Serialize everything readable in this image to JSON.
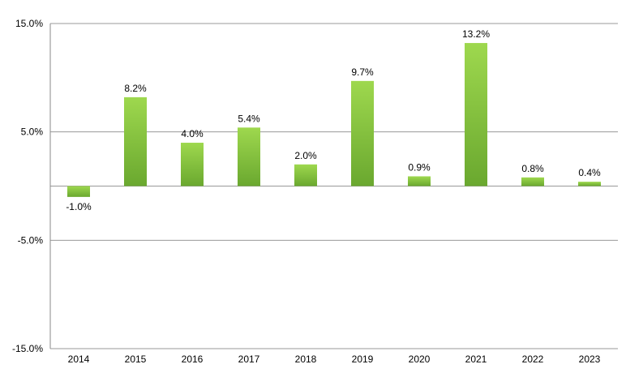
{
  "chart_data": {
    "type": "bar",
    "categories": [
      "2014",
      "2015",
      "2016",
      "2017",
      "2018",
      "2019",
      "2020",
      "2021",
      "2022",
      "2023"
    ],
    "values": [
      -1.0,
      8.2,
      4.0,
      5.4,
      2.0,
      9.7,
      0.9,
      13.2,
      0.8,
      0.4
    ],
    "data_labels": [
      "-1.0%",
      "8.2%",
      "4.0%",
      "5.4%",
      "2.0%",
      "9.7%",
      "0.9%",
      "13.2%",
      "0.8%",
      "0.4%"
    ],
    "y_ticks": [
      15.0,
      5.0,
      -5.0,
      -15.0
    ],
    "y_tick_labels": [
      "15.0%",
      "5.0%",
      "-5.0%",
      "-15.0%"
    ],
    "ylim": [
      -15,
      15
    ],
    "title": "",
    "xlabel": "",
    "ylabel": "",
    "grid": true,
    "bar_color_light": "#9ed84e",
    "bar_color_dark": "#6aa82f",
    "grid_color": "#999999"
  }
}
